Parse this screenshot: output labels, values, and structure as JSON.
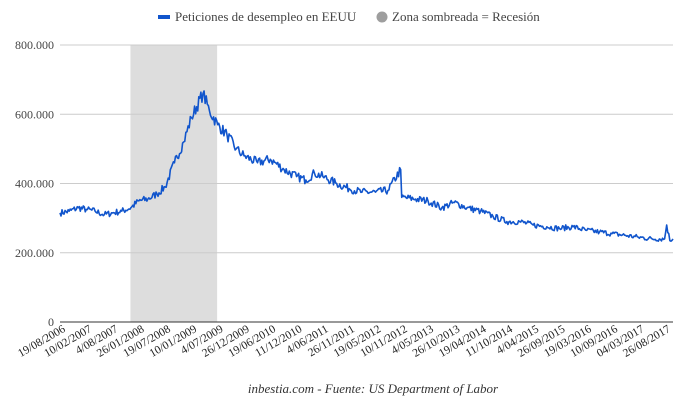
{
  "chart_data": {
    "type": "line",
    "legend": {
      "placement": "top-center",
      "entries": [
        {
          "label": "Peticiones de desempleo en EEUU",
          "color": "#1155cc",
          "marker": "line"
        },
        {
          "label": "Zona sombreada = Recesión",
          "color": "#9e9e9e",
          "marker": "circle"
        }
      ]
    },
    "source": "inbestia.com - Fuente: US Department of Labor",
    "x_axis": {
      "type": "date",
      "range": [
        "2006-08-19",
        "2017-10-21"
      ],
      "tick_labels": [
        "19/08/2006",
        "10/02/2007",
        "4/08/2007",
        "26/01/2008",
        "19/07/2008",
        "10/01/2009",
        "4/07/2009",
        "26/12/2009",
        "19/06/2010",
        "11/12/2010",
        "4/06/2011",
        "26/11/2011",
        "19/05/2012",
        "10/11/2012",
        "4/05/2013",
        "26/10/2013",
        "19/04/2014",
        "11/10/2014",
        "4/04/2015",
        "26/09/2015",
        "19/03/2016",
        "10/09/2016",
        "04/03/2017",
        "26/08/2017"
      ]
    },
    "y_axis": {
      "range": [
        0,
        800000
      ],
      "ticks": [
        0,
        200000,
        400000,
        600000,
        800000
      ],
      "tick_labels": [
        "0",
        "200.000",
        "400.000",
        "600.000",
        "800.000"
      ],
      "grid": true
    },
    "shaded_regions": [
      {
        "label": "Recesión",
        "start": "2007-12-01",
        "end": "2009-06-30",
        "color": "#dddddd"
      }
    ],
    "series": [
      {
        "name": "Peticiones de desempleo en EEUU",
        "color": "#1155cc",
        "x": [
          "2006-08-19",
          "2006-10-19",
          "2006-12-19",
          "2007-02-10",
          "2007-04-10",
          "2007-06-10",
          "2007-08-04",
          "2007-10-04",
          "2007-12-04",
          "2008-01-26",
          "2008-03-26",
          "2008-05-26",
          "2008-07-19",
          "2008-09-19",
          "2008-11-19",
          "2009-01-10",
          "2009-03-28",
          "2009-05-10",
          "2009-07-04",
          "2009-09-04",
          "2009-11-04",
          "2009-12-26",
          "2010-03-26",
          "2010-06-19",
          "2010-09-19",
          "2010-12-11",
          "2011-02-11",
          "2011-04-09",
          "2011-06-04",
          "2011-09-04",
          "2011-11-26",
          "2012-02-19",
          "2012-05-19",
          "2012-08-10",
          "2012-11-03",
          "2012-11-10",
          "2013-02-10",
          "2013-05-04",
          "2013-08-04",
          "2013-10-26",
          "2014-01-19",
          "2014-04-19",
          "2014-07-11",
          "2014-10-11",
          "2015-01-04",
          "2015-04-04",
          "2015-07-04",
          "2015-09-26",
          "2015-12-26",
          "2016-03-19",
          "2016-06-19",
          "2016-09-10",
          "2016-12-10",
          "2017-03-04",
          "2017-06-04",
          "2017-08-26",
          "2017-09-09",
          "2017-09-30",
          "2017-10-21"
        ],
        "values": [
          315000,
          320000,
          330000,
          325000,
          320000,
          310000,
          315000,
          320000,
          330000,
          350000,
          355000,
          370000,
          390000,
          460000,
          520000,
          590000,
          660000,
          610000,
          570000,
          540000,
          500000,
          480000,
          460000,
          470000,
          440000,
          420000,
          410000,
          430000,
          420000,
          400000,
          385000,
          375000,
          375000,
          380000,
          440000,
          360000,
          355000,
          350000,
          330000,
          345000,
          330000,
          320000,
          305000,
          290000,
          290000,
          280000,
          275000,
          270000,
          275000,
          265000,
          260000,
          255000,
          250000,
          245000,
          240000,
          240000,
          280000,
          235000,
          240000
        ]
      }
    ]
  }
}
